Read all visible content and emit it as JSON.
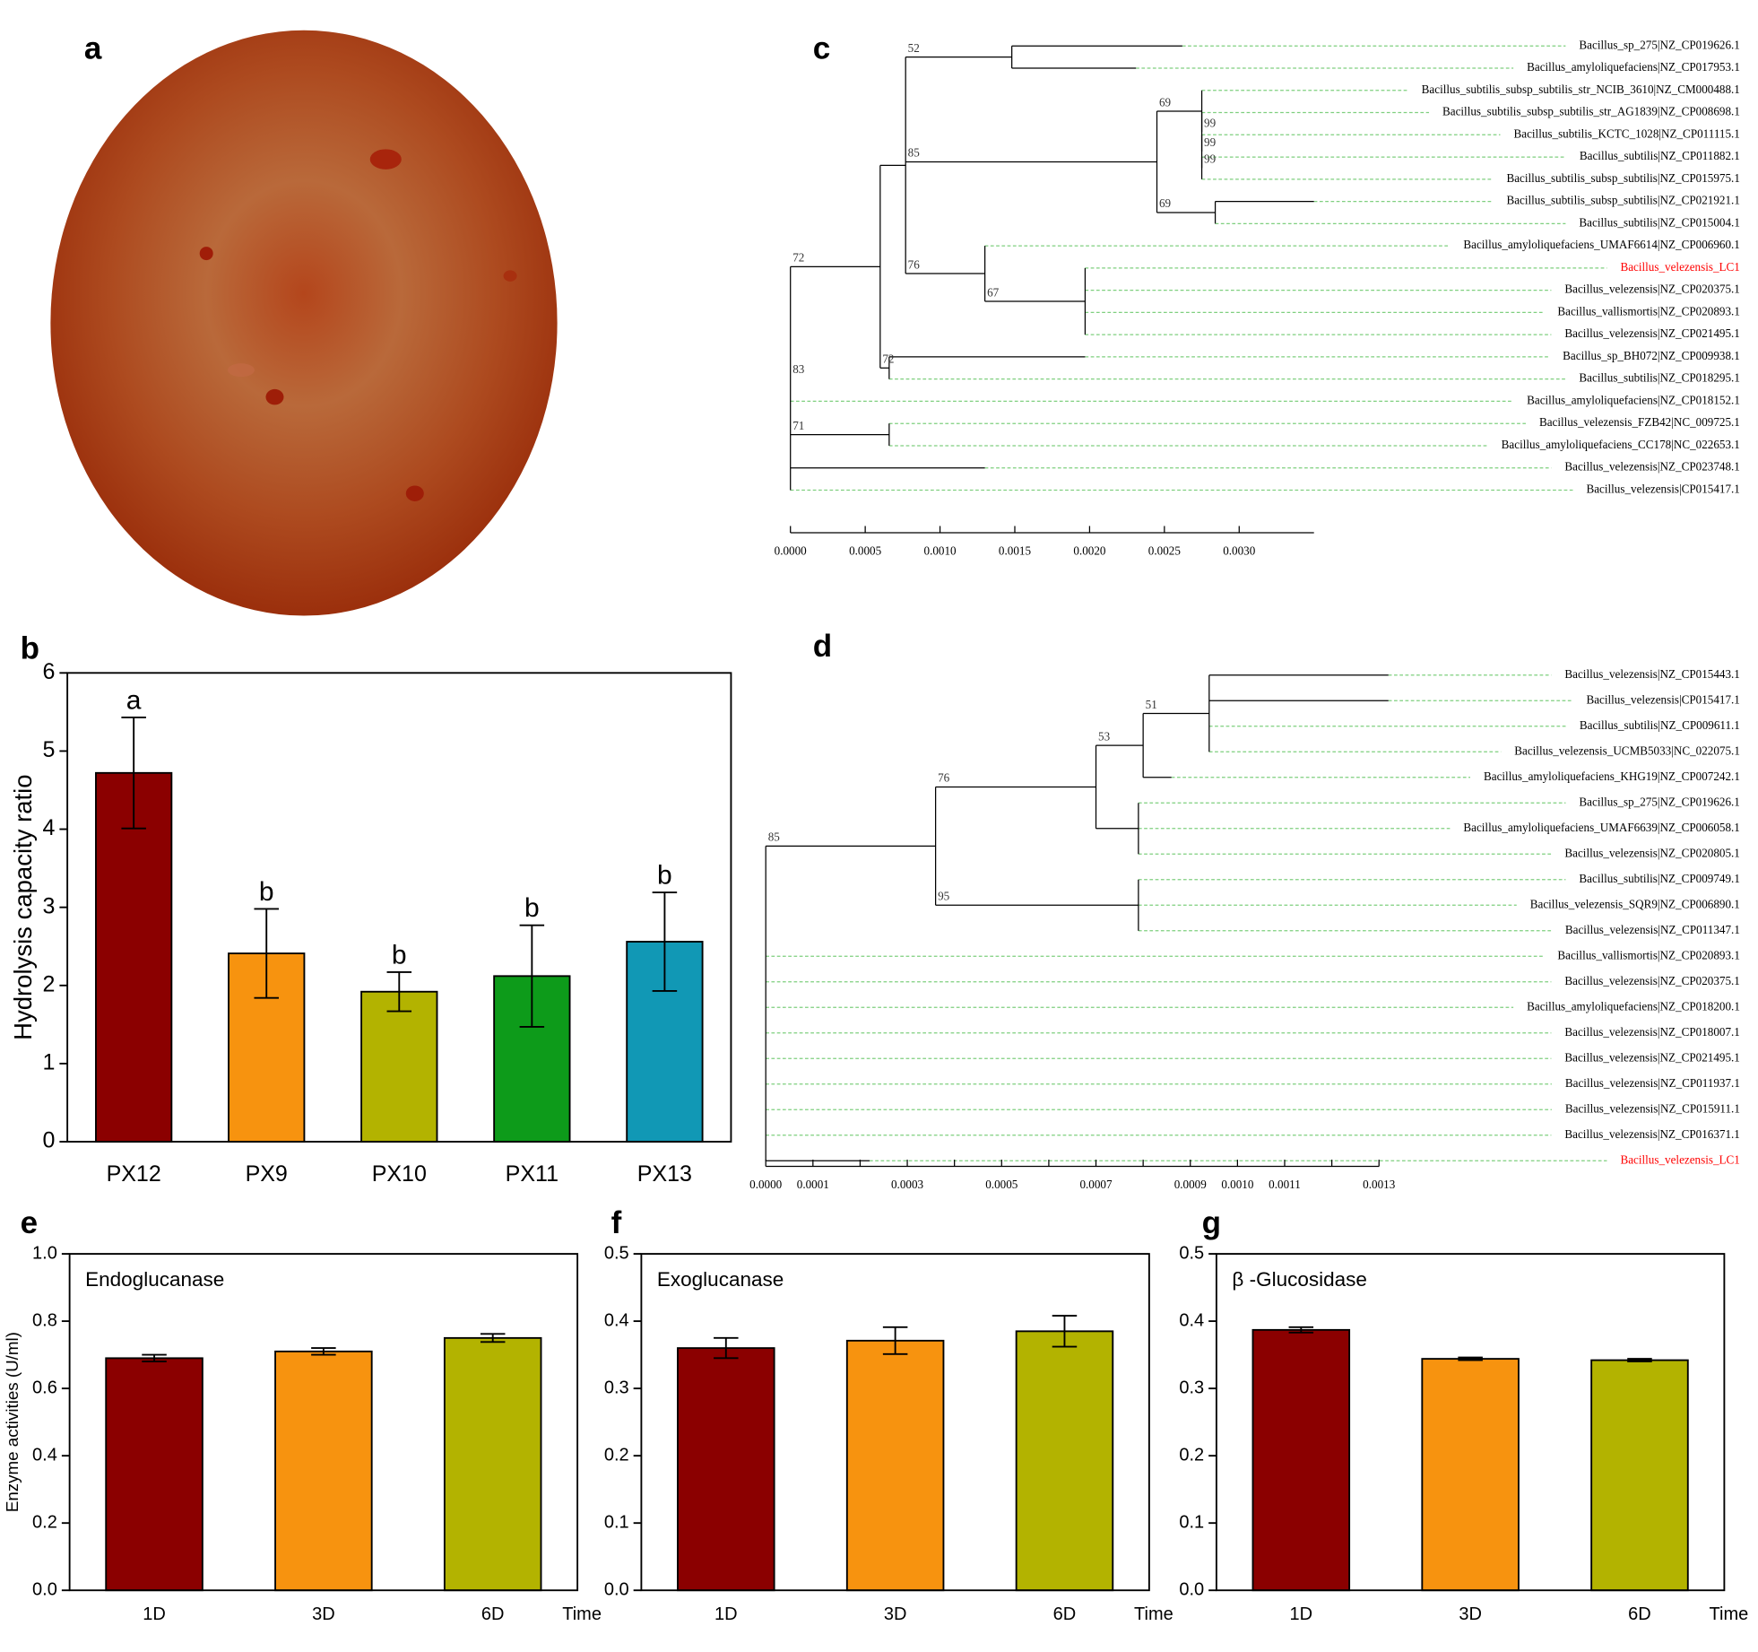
{
  "chart_data": [
    {
      "type": "image",
      "label": "a"
    },
    {
      "type": "bar",
      "label": "b",
      "ylabel": "Hydrolysis capacity ratio",
      "categories": [
        "PX12",
        "PX9",
        "PX10",
        "PX11",
        "PX13"
      ],
      "values": [
        4.72,
        2.41,
        1.92,
        2.12,
        2.56
      ],
      "errors": [
        0.71,
        0.57,
        0.25,
        0.65,
        0.63
      ],
      "letters": [
        "a",
        "b",
        "b",
        "b",
        "b"
      ],
      "colors": [
        "#8b0000",
        "#f7930f",
        "#b3b300",
        "#0d9b1a",
        "#1198b5"
      ],
      "ylim": [
        0,
        6
      ],
      "yticks": [
        0,
        1,
        2,
        3,
        4,
        5,
        6
      ]
    },
    {
      "type": "tree",
      "label": "c",
      "xlim": [
        0,
        0.0035
      ],
      "xticks": [
        {
          "value": 0,
          "label": "0.0000"
        },
        {
          "value": 0.0005,
          "label": "0.0005"
        },
        {
          "value": 0.001,
          "label": "0.0010"
        },
        {
          "value": 0.0015,
          "label": "0.0015"
        },
        {
          "value": 0.002,
          "label": "0.0020"
        },
        {
          "value": 0.0025,
          "label": "0.0025"
        },
        {
          "value": 0.003,
          "label": "0.0030"
        }
      ],
      "tree": {
        "support": "83",
        "x": 0,
        "children": [
          {
            "support": "72",
            "x": 0.0006,
            "children": [
              {
                "x": 0.00077,
                "children": [
                  {
                    "support": "52",
                    "x": 0.00148,
                    "children": [
                      {
                        "name": "Bacillus_sp_275|NZ_CP019626.1",
                        "x": 0.00262
                      },
                      {
                        "name": "Bacillus_amyloliquefaciens|NZ_CP017953.1",
                        "x": 0.00231
                      }
                    ]
                  },
                  {
                    "support": "85",
                    "x": 0.00245,
                    "children": [
                      {
                        "support": "69",
                        "x": 0.00275,
                        "children": [
                          {
                            "name": "Bacillus_subtilis_subsp_subtilis_str_NCIB_3610|NZ_CM000488.1",
                            "x": 0.00275
                          },
                          {
                            "support": "99",
                            "x": 0.00275,
                            "children": [
                              {
                                "name": "Bacillus_subtilis_subsp_subtilis_str_AG1839|NZ_CP008698.1",
                                "x": 0.00275
                              },
                              {
                                "support": "99",
                                "x": 0.00275,
                                "children": [
                                  {
                                    "name": "Bacillus_subtilis_KCTC_1028|NZ_CP011115.1",
                                    "x": 0.00275
                                  },
                                  {
                                    "support": "99",
                                    "x": 0.00275,
                                    "children": [
                                      {
                                        "name": "Bacillus_subtilis|NZ_CP011882.1",
                                        "x": 0.00275
                                      },
                                      {
                                        "name": "Bacillus_subtilis_subsp_subtilis|NZ_CP015975.1",
                                        "x": 0.00275
                                      }
                                    ]
                                  }
                                ]
                              }
                            ]
                          }
                        ]
                      },
                      {
                        "support": "69",
                        "x": 0.00284,
                        "children": [
                          {
                            "name": "Bacillus_subtilis_subsp_subtilis|NZ_CP021921.1",
                            "x": 0.0035
                          },
                          {
                            "name": "Bacillus_subtilis|NZ_CP015004.1",
                            "x": 0.00284
                          }
                        ]
                      }
                    ]
                  },
                  {
                    "support": "76",
                    "x": 0.0013,
                    "children": [
                      {
                        "name": "Bacillus_amyloliquefaciens_UMAF6614|NZ_CP006960.1",
                        "x": 0.0013
                      },
                      {
                        "support": "67",
                        "x": 0.00197,
                        "children": [
                          {
                            "name": "Bacillus_velezensis_LC1",
                            "x": 0.00197,
                            "color": "#ff0000"
                          },
                          {
                            "name": "Bacillus_velezensis|NZ_CP020375.1",
                            "x": 0.00197
                          },
                          {
                            "name": "Bacillus_vallismortis|NZ_CP020893.1",
                            "x": 0.00197
                          },
                          {
                            "name": "Bacillus_velezensis|NZ_CP021495.1",
                            "x": 0.00197
                          }
                        ]
                      }
                    ]
                  }
                ]
              },
              {
                "support": "72",
                "x": 0.00066,
                "children": [
                  {
                    "name": "Bacillus_sp_BH072|NZ_CP009938.1",
                    "x": 0.00197
                  },
                  {
                    "name": "Bacillus_subtilis|NZ_CP018295.1",
                    "x": 0.00066
                  }
                ]
              }
            ]
          },
          {
            "name": "Bacillus_amyloliquefaciens|NZ_CP018152.1",
            "x": 0
          },
          {
            "support": "71",
            "x": 0.00066,
            "children": [
              {
                "name": "Bacillus_velezensis_FZB42|NC_009725.1",
                "x": 0.00066
              },
              {
                "name": "Bacillus_amyloliquefaciens_CC178|NC_022653.1",
                "x": 0.00066
              }
            ]
          },
          {
            "name": "Bacillus_velezensis|NZ_CP023748.1",
            "x": 0.0013
          },
          {
            "name": "Bacillus_velezensis|CP015417.1",
            "x": 0
          }
        ]
      }
    },
    {
      "type": "tree",
      "label": "d",
      "xlim": [
        0,
        0.0013
      ],
      "xticks": [
        {
          "value": 0,
          "label": "0.0000"
        },
        {
          "value": 0.0001,
          "label": "0.0001"
        },
        {
          "value": 0.0003,
          "label": "0.0003"
        },
        {
          "value": 0.0005,
          "label": "0.0005"
        },
        {
          "value": 0.0007,
          "label": "0.0007"
        },
        {
          "value": 0.0009,
          "label": "0.0009"
        },
        {
          "value": 0.001,
          "label": "0.0010"
        },
        {
          "value": 0.0011,
          "label": "0.0011"
        },
        {
          "value": 0.0013,
          "label": "0.0013"
        }
      ],
      "minor_xticks": [
        0.0002,
        0.0004,
        0.0006,
        0.0008,
        0.0012
      ],
      "tree": {
        "x": 0,
        "children": [
          {
            "support": "85",
            "x": 0.00036,
            "children": [
              {
                "support": "76",
                "x": 0.0007,
                "children": [
                  {
                    "support": "53",
                    "x": 0.0008,
                    "children": [
                      {
                        "support": "51",
                        "x": 0.00094,
                        "children": [
                          {
                            "name": "Bacillus_velezensis|NZ_CP015443.1",
                            "x": 0.00132
                          },
                          {
                            "name": "Bacillus_velezensis|CP015417.1",
                            "x": 0.00132
                          },
                          {
                            "name": "Bacillus_subtilis|NZ_CP009611.1",
                            "x": 0.00094
                          },
                          {
                            "name": "Bacillus_velezensis_UCMB5033|NC_022075.1",
                            "x": 0.00094
                          }
                        ]
                      },
                      {
                        "name": "Bacillus_amyloliquefaciens_KHG19|NZ_CP007242.1",
                        "x": 0.00086
                      }
                    ]
                  },
                  {
                    "x": 0.00079,
                    "children": [
                      {
                        "name": "Bacillus_sp_275|NZ_CP019626.1",
                        "x": 0.00079
                      },
                      {
                        "name": "Bacillus_amyloliquefaciens_UMAF6639|NZ_CP006058.1",
                        "x": 0.00079
                      },
                      {
                        "name": "Bacillus_velezensis|NZ_CP020805.1",
                        "x": 0.00079
                      }
                    ]
                  }
                ]
              },
              {
                "support": "95",
                "x": 0.00079,
                "children": [
                  {
                    "name": "Bacillus_subtilis|NZ_CP009749.1",
                    "x": 0.00079
                  },
                  {
                    "name": "Bacillus_velezensis_SQR9|NZ_CP006890.1",
                    "x": 0.00079
                  },
                  {
                    "name": "Bacillus_velezensis|NZ_CP011347.1",
                    "x": 0.00079
                  }
                ]
              }
            ]
          },
          {
            "name": "Bacillus_vallismortis|NZ_CP020893.1",
            "x": 0
          },
          {
            "name": "Bacillus_velezensis|NZ_CP020375.1",
            "x": 0
          },
          {
            "name": "Bacillus_amyloliquefaciens|NZ_CP018200.1",
            "x": 0
          },
          {
            "name": "Bacillus_velezensis|NZ_CP018007.1",
            "x": 0
          },
          {
            "name": "Bacillus_velezensis|NZ_CP021495.1",
            "x": 0
          },
          {
            "name": "Bacillus_velezensis|NZ_CP011937.1",
            "x": 0
          },
          {
            "name": "Bacillus_velezensis|NZ_CP015911.1",
            "x": 0
          },
          {
            "name": "Bacillus_velezensis|NZ_CP016371.1",
            "x": 0
          },
          {
            "name": "Bacillus_velezensis_LC1",
            "x": 0.00022,
            "color": "#ff0000"
          }
        ]
      }
    },
    {
      "type": "bar",
      "label": "e",
      "ylabel": "Enzyme activities (U/ml)",
      "annotation": "Endoglucanase",
      "x_label": "Time",
      "categories": [
        "1D",
        "3D",
        "6D"
      ],
      "values": [
        0.69,
        0.71,
        0.75
      ],
      "errors": [
        0.01,
        0.01,
        0.012
      ],
      "colors": [
        "#8b0000",
        "#f7930f",
        "#b3b300"
      ],
      "ylim": [
        0,
        1
      ],
      "yticks": [
        {
          "value": 0,
          "label": "0.0"
        },
        0.2,
        0.4,
        0.6,
        0.8,
        {
          "value": 1,
          "label": "1.0"
        }
      ]
    },
    {
      "type": "bar",
      "label": "f",
      "annotation": "Exoglucanase",
      "x_label": "Time",
      "categories": [
        "1D",
        "3D",
        "6D"
      ],
      "values": [
        0.36,
        0.371,
        0.385
      ],
      "errors": [
        0.015,
        0.02,
        0.023
      ],
      "colors": [
        "#8b0000",
        "#f7930f",
        "#b3b300"
      ],
      "ylim": [
        0,
        0.5
      ],
      "yticks": [
        {
          "value": 0,
          "label": "0.0"
        },
        0.1,
        0.2,
        0.3,
        0.4,
        0.5
      ]
    },
    {
      "type": "bar",
      "label": "g",
      "annotation": "β -Glucosidase",
      "x_label": "Time",
      "categories": [
        "1D",
        "3D",
        "6D"
      ],
      "values": [
        0.387,
        0.344,
        0.342
      ],
      "errors": [
        0.004,
        0.002,
        0.002
      ],
      "colors": [
        "#8b0000",
        "#f7930f",
        "#b3b300"
      ],
      "ylim": [
        0,
        0.5
      ],
      "yticks": [
        {
          "value": 0,
          "label": "0.0"
        },
        0.1,
        0.2,
        0.3,
        0.4,
        0.5
      ]
    }
  ]
}
